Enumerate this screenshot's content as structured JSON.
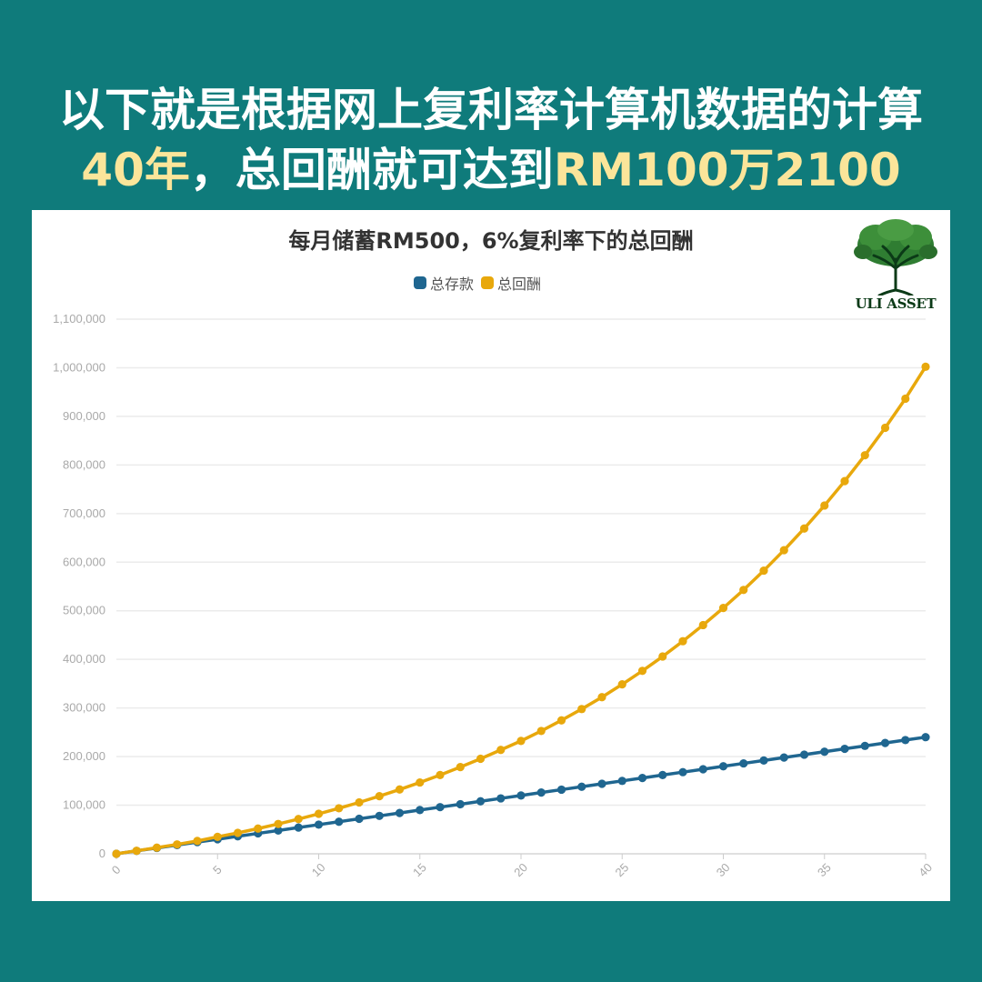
{
  "headline": {
    "line1": "以下就是根据网上复利率计算机数据的计算",
    "line2_a": "40年",
    "line2_b": "，总回酬就可达到",
    "line2_c": "RM100万2100"
  },
  "logo": {
    "icon": "tree-icon",
    "text": "ULI ASSET"
  },
  "colors": {
    "background": "#0f7b7b",
    "highlight": "#fbe59a",
    "deposit": "#1f6690",
    "returns": "#e8a80c"
  },
  "chart_data": {
    "type": "line",
    "title": "每月储蓄RM500，6%复利率下的总回酬",
    "legend_position": "top-center",
    "grid": true,
    "xlim": [
      0,
      40
    ],
    "ylim": [
      0,
      1100000
    ],
    "x_tick_labels": [
      "0",
      "5",
      "10",
      "15",
      "20",
      "25",
      "30",
      "35",
      "40"
    ],
    "y_tick_labels": [
      "0",
      "100,000",
      "200,000",
      "300,000",
      "400,000",
      "500,000",
      "600,000",
      "700,000",
      "800,000",
      "900,000",
      "1,000,000",
      "1,100,000"
    ],
    "x": [
      0,
      1,
      2,
      3,
      4,
      5,
      6,
      7,
      8,
      9,
      10,
      11,
      12,
      13,
      14,
      15,
      16,
      17,
      18,
      19,
      20,
      21,
      22,
      23,
      24,
      25,
      26,
      27,
      28,
      29,
      30,
      31,
      32,
      33,
      34,
      35,
      36,
      37,
      38,
      39,
      40
    ],
    "series": [
      {
        "name": "总存款",
        "color": "#1f6690",
        "values": [
          0,
          6000,
          12000,
          18000,
          24000,
          30000,
          36000,
          42000,
          48000,
          54000,
          60000,
          66000,
          72000,
          78000,
          84000,
          90000,
          96000,
          102000,
          108000,
          114000,
          120000,
          126000,
          132000,
          138000,
          144000,
          150000,
          156000,
          162000,
          168000,
          174000,
          180000,
          186000,
          192000,
          198000,
          204000,
          210000,
          216000,
          222000,
          228000,
          234000,
          240000
        ]
      },
      {
        "name": "总回酬",
        "color": "#e8a80c",
        "values": [
          0,
          6200,
          12600,
          19300,
          26400,
          34900,
          43000,
          51900,
          61400,
          71500,
          82300,
          93700,
          105700,
          118600,
          132300,
          146700,
          162000,
          178400,
          195500,
          213800,
          232200,
          252700,
          274600,
          297800,
          322300,
          348600,
          376400,
          405900,
          437400,
          470600,
          505800,
          542900,
          582600,
          624700,
          669300,
          716600,
          766800,
          820000,
          876500,
          936400,
          1002100
        ]
      }
    ]
  }
}
